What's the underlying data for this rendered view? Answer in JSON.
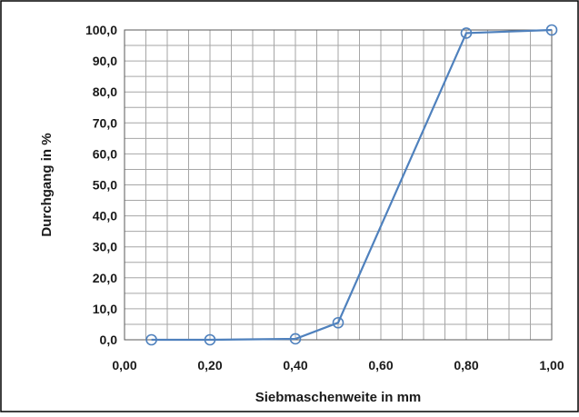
{
  "chart_data": {
    "type": "scatter",
    "title": "",
    "xlabel": "Siebmaschenweite in mm",
    "ylabel": "Durchgang in %",
    "xlim": [
      0.0,
      1.0
    ],
    "ylim": [
      0.0,
      100.0
    ],
    "x_ticks": [
      "0,00",
      "0,20",
      "0,40",
      "0,60",
      "0,80",
      "1,00"
    ],
    "y_ticks": [
      "0,0",
      "10,0",
      "20,0",
      "30,0",
      "40,0",
      "50,0",
      "60,0",
      "70,0",
      "80,0",
      "90,0",
      "100,0"
    ],
    "grid": true,
    "legend": "none",
    "series": [
      {
        "x": [
          0.063,
          0.2,
          0.4,
          0.5,
          0.8,
          1.0
        ],
        "y": [
          0.0,
          0.0,
          0.3,
          5.5,
          99.0,
          100.0
        ],
        "color": "#4f81bd",
        "marker": "open-circle",
        "line": "straight"
      }
    ]
  },
  "colors": {
    "series": "#4f81bd",
    "grid": "#a6a6a6",
    "frame": "#000000"
  }
}
